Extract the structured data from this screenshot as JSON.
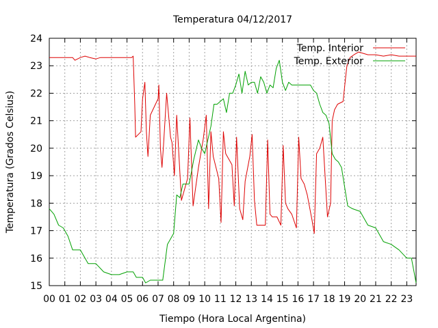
{
  "chart_data": {
    "type": "line",
    "title": "Temperatura 04/12/2017",
    "xlabel": "Tiempo (Hora Local Argentina)",
    "ylabel": "Temperatura (Grados Celsius)",
    "xlim": [
      0,
      23.6
    ],
    "ylim": [
      15,
      24
    ],
    "grid": true,
    "legend_position": "top-right",
    "x_ticks": [
      "00",
      "01",
      "02",
      "03",
      "04",
      "05",
      "06",
      "07",
      "08",
      "09",
      "10",
      "11",
      "12",
      "13",
      "14",
      "15",
      "16",
      "17",
      "18",
      "19",
      "20",
      "21",
      "22",
      "23"
    ],
    "y_ticks": [
      15,
      16,
      17,
      18,
      19,
      20,
      21,
      22,
      23,
      24
    ],
    "series": [
      {
        "name": "Temp. Interior",
        "color": "#dd0000",
        "x": [
          0,
          0.5,
          1,
          1.5,
          1.65,
          2,
          2.3,
          2.6,
          3,
          3.3,
          3.6,
          4,
          4.5,
          5,
          5.3,
          5.4,
          5.5,
          5.55,
          5.9,
          6.0,
          6.15,
          6.25,
          6.35,
          6.5,
          7.0,
          7.05,
          7.15,
          7.25,
          7.35,
          7.55,
          7.8,
          7.9,
          8.05,
          8.2,
          8.5,
          8.9,
          9.05,
          9.25,
          9.6,
          9.9,
          10.1,
          10.25,
          10.4,
          10.55,
          10.9,
          11.05,
          11.2,
          11.35,
          11.75,
          11.9,
          12.05,
          12.25,
          12.45,
          12.6,
          12.9,
          13.05,
          13.2,
          13.35,
          13.75,
          13.9,
          14.05,
          14.2,
          14.35,
          14.65,
          14.9,
          15.05,
          15.2,
          15.35,
          15.6,
          15.9,
          16.05,
          16.2,
          16.4,
          16.6,
          16.9,
          17.05,
          17.2,
          17.4,
          17.6,
          17.9,
          18.1,
          18.2,
          18.35,
          18.55,
          18.9,
          19.05,
          19.15,
          19.35,
          19.6,
          19.9,
          20.2,
          20.5,
          21,
          21.5,
          22,
          22.5,
          23,
          23.6
        ],
        "values": [
          23.3,
          23.3,
          23.3,
          23.3,
          23.2,
          23.3,
          23.35,
          23.3,
          23.25,
          23.3,
          23.3,
          23.3,
          23.3,
          23.3,
          23.3,
          23.35,
          21.6,
          20.4,
          20.6,
          21.8,
          22.4,
          20.6,
          19.7,
          21.2,
          21.8,
          22.3,
          20.0,
          19.3,
          20.1,
          22.0,
          20.4,
          20.2,
          19.0,
          21.2,
          18.1,
          18.9,
          21.1,
          17.9,
          19.3,
          20.3,
          21.2,
          17.8,
          20.6,
          19.7,
          18.9,
          17.3,
          20.6,
          19.8,
          19.4,
          17.9,
          20.4,
          17.8,
          17.4,
          18.8,
          19.7,
          20.5,
          18.1,
          17.2,
          17.2,
          17.2,
          20.3,
          17.6,
          17.5,
          17.5,
          17.2,
          20.1,
          18.0,
          17.8,
          17.6,
          17.1,
          20.4,
          18.9,
          18.7,
          18.3,
          17.4,
          16.9,
          19.8,
          20.0,
          20.4,
          17.5,
          18.0,
          21.0,
          21.4,
          21.6,
          21.7,
          22.5,
          23.0,
          23.3,
          23.4,
          23.5,
          23.45,
          23.4,
          23.4,
          23.35,
          23.4,
          23.35,
          23.35,
          23.35
        ]
      },
      {
        "name": "Temp. Exterior",
        "color": "#00a000",
        "x": [
          0,
          0.3,
          0.6,
          0.9,
          1.2,
          1.5,
          1.7,
          2.0,
          2.5,
          3.0,
          3.5,
          4.0,
          4.5,
          5.0,
          5.4,
          5.6,
          6.0,
          6.2,
          6.5,
          7.0,
          7.3,
          7.6,
          8.0,
          8.2,
          8.4,
          8.6,
          9.0,
          9.3,
          9.6,
          9.8,
          10.0,
          10.2,
          10.4,
          10.6,
          10.8,
          11.0,
          11.2,
          11.4,
          11.6,
          11.8,
          12.0,
          12.2,
          12.4,
          12.6,
          12.8,
          13.0,
          13.2,
          13.4,
          13.6,
          13.8,
          14.0,
          14.2,
          14.4,
          14.6,
          14.8,
          15.0,
          15.2,
          15.4,
          15.6,
          15.8,
          16.0,
          16.2,
          16.4,
          16.6,
          16.8,
          17.0,
          17.2,
          17.4,
          17.6,
          17.8,
          18.0,
          18.2,
          18.4,
          18.6,
          18.8,
          19.0,
          19.2,
          19.5,
          20.0,
          20.5,
          21.0,
          21.5,
          22.0,
          22.5,
          23.0,
          23.3,
          23.6
        ],
        "values": [
          17.8,
          17.6,
          17.2,
          17.1,
          16.8,
          16.3,
          16.3,
          16.3,
          15.8,
          15.8,
          15.5,
          15.4,
          15.4,
          15.5,
          15.5,
          15.3,
          15.3,
          15.1,
          15.2,
          15.2,
          15.2,
          16.5,
          16.9,
          18.3,
          18.2,
          18.7,
          18.7,
          19.6,
          20.3,
          20.0,
          19.8,
          20.3,
          20.8,
          21.6,
          21.6,
          21.7,
          21.8,
          21.3,
          22.0,
          22.0,
          22.3,
          22.7,
          22.0,
          22.8,
          22.3,
          22.4,
          22.4,
          22.0,
          22.6,
          22.4,
          22.0,
          22.3,
          22.2,
          22.9,
          23.2,
          22.4,
          22.1,
          22.4,
          22.3,
          22.3,
          22.3,
          22.3,
          22.3,
          22.3,
          22.3,
          22.1,
          22.0,
          21.6,
          21.3,
          21.2,
          20.9,
          19.8,
          19.6,
          19.5,
          19.3,
          18.6,
          17.9,
          17.8,
          17.7,
          17.2,
          17.1,
          16.6,
          16.5,
          16.3,
          16.0,
          16.0,
          15.1
        ]
      }
    ]
  }
}
